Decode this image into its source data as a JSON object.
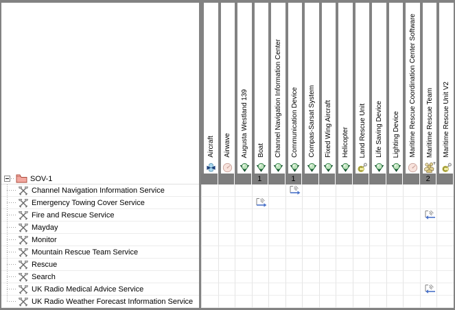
{
  "matrix": {
    "source": {
      "label": "SOV-1",
      "icon": "package-icon",
      "expander": "minus"
    },
    "columns": [
      {
        "label": "Aircraft",
        "icon": "aircraft-icon",
        "count": ""
      },
      {
        "label": "Airwave",
        "icon": "dial-icon",
        "count": ""
      },
      {
        "label": "Augusta Westland 139",
        "icon": "capability-icon",
        "count": ""
      },
      {
        "label": "Boat",
        "icon": "capability-icon",
        "count": "1"
      },
      {
        "label": "Channel Navigation Information Center",
        "icon": "capability-icon",
        "count": ""
      },
      {
        "label": "Communication Device",
        "icon": "capability-icon",
        "count": "1"
      },
      {
        "label": "Compas-Sarsat System",
        "icon": "capability-icon",
        "count": ""
      },
      {
        "label": "Fixed Wing Aircraft",
        "icon": "capability-icon",
        "count": ""
      },
      {
        "label": "Helicopter",
        "icon": "capability-icon",
        "count": ""
      },
      {
        "label": "Land Rescue Unit",
        "icon": "resource-icon",
        "count": ""
      },
      {
        "label": "Life Saving Device",
        "icon": "capability-icon",
        "count": ""
      },
      {
        "label": "Lighting Device",
        "icon": "capability-icon",
        "count": ""
      },
      {
        "label": "Maritime Rescue Coordination Center Software",
        "icon": "dial-icon",
        "count": ""
      },
      {
        "label": "Maritime Rescue Team",
        "icon": "team-icon",
        "count": "2"
      },
      {
        "label": "Maritime Rescue Unit V2",
        "icon": "resource-icon",
        "count": ""
      }
    ],
    "rows": [
      {
        "label": "Channel Navigation Information Service",
        "icon": "service-icon"
      },
      {
        "label": "Emergency Towing Cover Service",
        "icon": "service-icon"
      },
      {
        "label": "Fire and Rescue Service",
        "icon": "service-icon"
      },
      {
        "label": "Mayday",
        "icon": "service-icon"
      },
      {
        "label": "Monitor",
        "icon": "service-icon"
      },
      {
        "label": "Mountain Rescue Team Service",
        "icon": "service-icon"
      },
      {
        "label": "Rescue",
        "icon": "service-icon"
      },
      {
        "label": "Search",
        "icon": "service-icon"
      },
      {
        "label": "UK Radio Medical Advice Service",
        "icon": "service-icon"
      },
      {
        "label": "UK Radio Weather Forecast Information Service",
        "icon": "service-icon"
      }
    ],
    "links": [
      {
        "row": 0,
        "col": 5,
        "direction": "right"
      },
      {
        "row": 1,
        "col": 3,
        "direction": "right"
      },
      {
        "row": 2,
        "col": 13,
        "direction": "left"
      },
      {
        "row": 8,
        "col": 13,
        "direction": "left"
      }
    ],
    "colors": {
      "separator_gray": "#828282",
      "count_band": "#7d7d7d",
      "grid_line": "#e4e4e4",
      "link_arrow": "#4a72c8",
      "capability_green": "#2e7d46",
      "package_red": "#f2a8a0"
    }
  }
}
